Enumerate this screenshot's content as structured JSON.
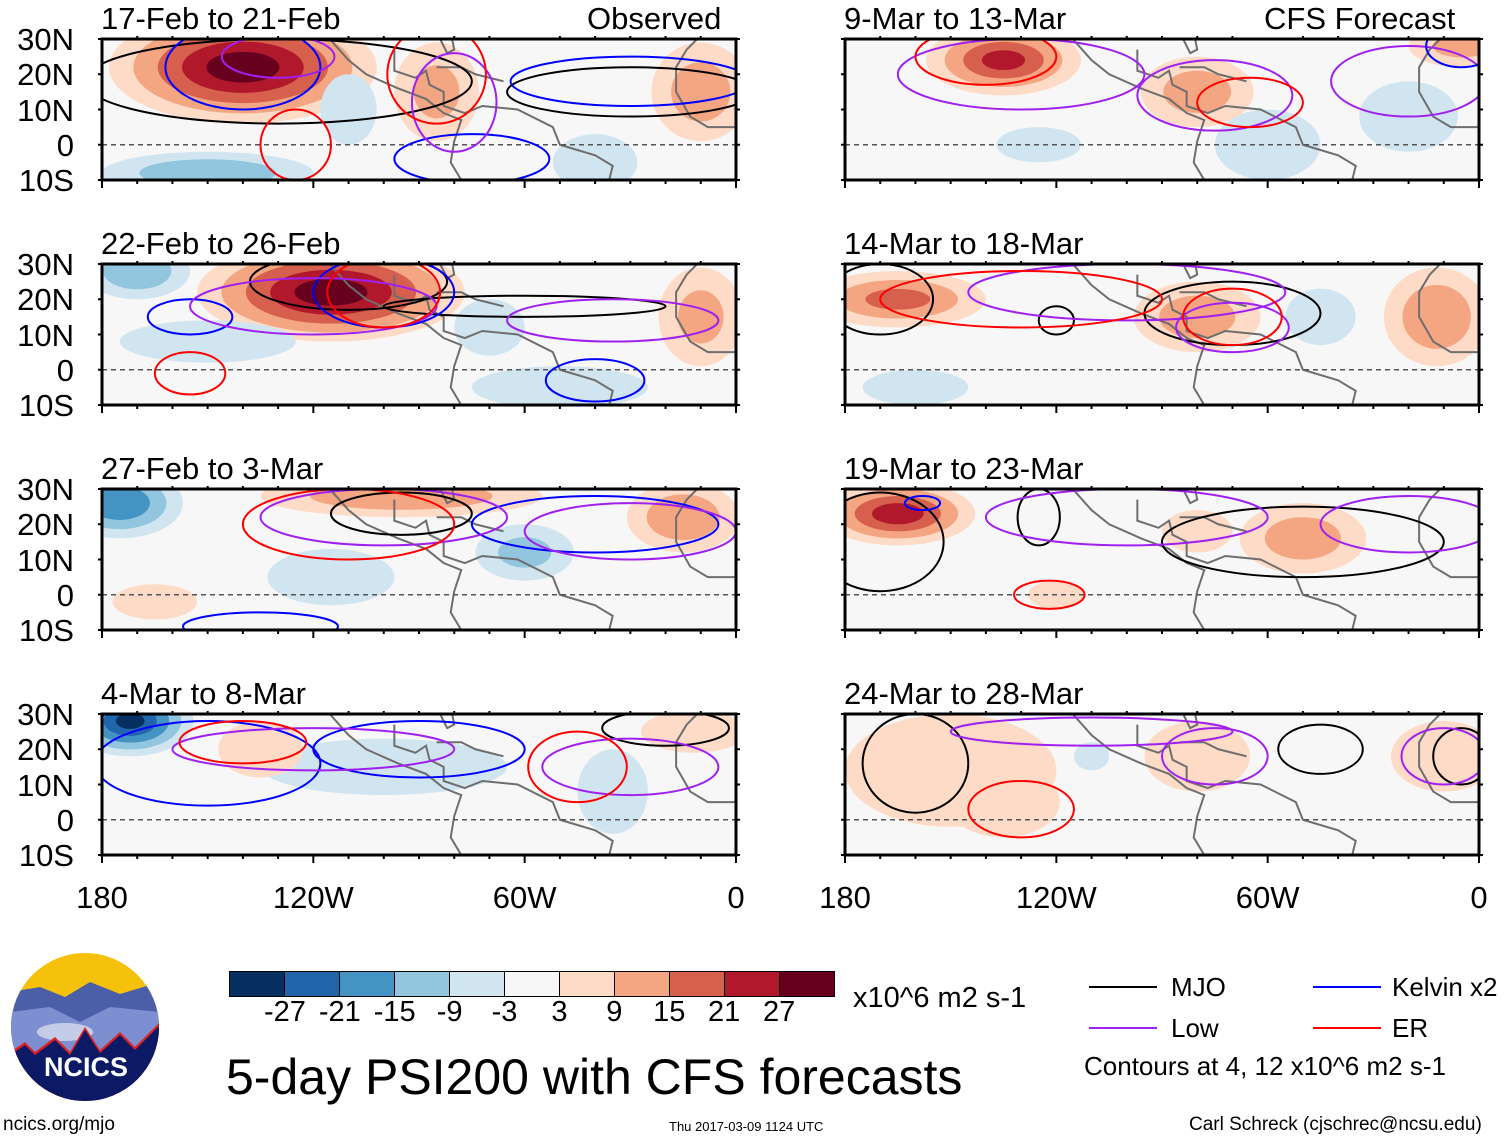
{
  "figure": {
    "title": "5-day PSI200 with CFS forecasts",
    "footer_left": "ncics.org/mjo",
    "footer_center": "Thu 2017-03-09 1124 UTC",
    "footer_right": "Carl Schreck (cjschrec@ncsu.edu)",
    "logo_text": "NCICS"
  },
  "columns": [
    {
      "label": "Observed"
    },
    {
      "label": "CFS Forecast"
    }
  ],
  "lat_labels": [
    "30N",
    "20N",
    "10N",
    "0",
    "10S"
  ],
  "lon_labels": [
    "180",
    "120W",
    "60W",
    "0"
  ],
  "colorbar": {
    "units": "x10^6 m2 s-1",
    "colors": [
      "#053061",
      "#2166ac",
      "#4393c3",
      "#92c5de",
      "#d1e5f0",
      "#f7f7f7",
      "#fddbc7",
      "#f4a582",
      "#d6604d",
      "#b2182b",
      "#67001f"
    ],
    "ticks": [
      "-27",
      "-21",
      "-15",
      "-9",
      "-3",
      "3",
      "9",
      "15",
      "21",
      "27"
    ]
  },
  "legend": {
    "items": [
      {
        "label": "MJO",
        "color": "#000000"
      },
      {
        "label": "Kelvin x2",
        "color": "#0000ff"
      },
      {
        "label": "Low",
        "color": "#a020f0"
      },
      {
        "label": "ER",
        "color": "#ff0000"
      }
    ],
    "contours_note": "Contours at 4, 12 x10^6 m2 s-1"
  },
  "chart_data": {
    "type": "map",
    "domain": {
      "lonW": [
        180,
        0
      ],
      "lat": [
        -10,
        30
      ]
    },
    "coastline": [
      [
        [
          118,
          33
        ],
        [
          110,
          24
        ],
        [
          105,
          20
        ],
        [
          96,
          16
        ],
        [
          88,
          13
        ],
        [
          83,
          9
        ],
        [
          78,
          7
        ],
        [
          80,
          1
        ],
        [
          81,
          -5
        ],
        [
          78,
          -10
        ]
      ],
      [
        [
          97,
          27
        ],
        [
          97,
          21
        ],
        [
          91,
          19
        ],
        [
          88,
          21
        ],
        [
          87,
          17
        ],
        [
          83,
          15
        ],
        [
          83,
          11
        ],
        [
          77,
          9
        ],
        [
          72,
          11
        ],
        [
          62,
          10
        ],
        [
          52,
          5
        ],
        [
          50,
          0
        ],
        [
          40,
          -3
        ],
        [
          35,
          -6
        ],
        [
          36,
          -10
        ]
      ],
      [
        [
          90,
          30
        ],
        [
          84,
          30
        ],
        [
          82,
          26
        ],
        [
          80,
          27
        ],
        [
          81,
          32
        ]
      ],
      [
        [
          85,
          22
        ],
        [
          78,
          22
        ],
        [
          74,
          20
        ],
        [
          70,
          19
        ],
        [
          66,
          18
        ]
      ],
      [
        [
          10,
          31
        ],
        [
          14,
          27
        ],
        [
          17,
          22
        ],
        [
          17,
          15
        ],
        [
          13,
          8
        ],
        [
          8,
          5
        ],
        [
          0,
          5
        ]
      ]
    ],
    "panels": [
      {
        "title": "17-Feb to 21-Feb",
        "column": 0,
        "anomalies": [
          {
            "lonW": 140,
            "lat": 22,
            "rlon": 38,
            "rlat": 16,
            "value": 30
          },
          {
            "lonW": 85,
            "lat": 15,
            "rlon": 12,
            "rlat": 14,
            "value": 10
          },
          {
            "lonW": 10,
            "lat": 15,
            "rlon": 14,
            "rlat": 14,
            "value": 12
          },
          {
            "lonW": 150,
            "lat": -8,
            "rlon": 30,
            "rlat": 6,
            "value": -14
          },
          {
            "lonW": 110,
            "lat": 10,
            "rlon": 8,
            "rlat": 10,
            "value": -8
          },
          {
            "lonW": 40,
            "lat": -5,
            "rlon": 12,
            "rlat": 8,
            "value": -8
          }
        ],
        "contours": [
          {
            "type": "MJO",
            "lonW": 130,
            "lat": 18,
            "rlon": 55,
            "rlat": 12
          },
          {
            "type": "MJO",
            "lonW": 30,
            "lat": 15,
            "rlon": 35,
            "rlat": 7
          },
          {
            "type": "Kelvin x2",
            "lonW": 140,
            "lat": 22,
            "rlon": 22,
            "rlat": 12
          },
          {
            "type": "Kelvin x2",
            "lonW": 30,
            "lat": 18,
            "rlon": 34,
            "rlat": 7
          },
          {
            "type": "Kelvin x2",
            "lonW": 75,
            "lat": -4,
            "rlon": 22,
            "rlat": 7
          },
          {
            "type": "Low",
            "lonW": 130,
            "lat": 25,
            "rlon": 16,
            "rlat": 6
          },
          {
            "type": "Low",
            "lonW": 80,
            "lat": 12,
            "rlon": 12,
            "rlat": 14
          },
          {
            "type": "ER",
            "lonW": 85,
            "lat": 20,
            "rlon": 14,
            "rlat": 14
          },
          {
            "type": "ER",
            "lonW": 125,
            "lat": 0,
            "rlon": 10,
            "rlat": 10
          }
        ]
      },
      {
        "title": "22-Feb to 26-Feb",
        "column": 0,
        "anomalies": [
          {
            "lonW": 115,
            "lat": 22,
            "rlon": 38,
            "rlat": 14,
            "value": 30
          },
          {
            "lonW": 10,
            "lat": 15,
            "rlon": 12,
            "rlat": 14,
            "value": 10
          },
          {
            "lonW": 170,
            "lat": 28,
            "rlon": 15,
            "rlat": 8,
            "value": -14
          },
          {
            "lonW": 70,
            "lat": 12,
            "rlon": 10,
            "rlat": 8,
            "value": -8
          },
          {
            "lonW": 50,
            "lat": -5,
            "rlon": 25,
            "rlat": 6,
            "value": -6
          },
          {
            "lonW": 150,
            "lat": 8,
            "rlon": 25,
            "rlat": 6,
            "value": -5
          }
        ],
        "contours": [
          {
            "type": "MJO",
            "lonW": 110,
            "lat": 25,
            "rlon": 28,
            "rlat": 8
          },
          {
            "type": "MJO",
            "lonW": 60,
            "lat": 18,
            "rlon": 40,
            "rlat": 3
          },
          {
            "type": "Kelvin x2",
            "lonW": 100,
            "lat": 22,
            "rlon": 20,
            "rlat": 10
          },
          {
            "type": "Kelvin x2",
            "lonW": 155,
            "lat": 15,
            "rlon": 12,
            "rlat": 5
          },
          {
            "type": "Kelvin x2",
            "lonW": 40,
            "lat": -3,
            "rlon": 14,
            "rlat": 6
          },
          {
            "type": "Low",
            "lonW": 120,
            "lat": 18,
            "rlon": 35,
            "rlat": 8
          },
          {
            "type": "Low",
            "lonW": 35,
            "lat": 14,
            "rlon": 30,
            "rlat": 6
          },
          {
            "type": "ER",
            "lonW": 100,
            "lat": 22,
            "rlon": 16,
            "rlat": 10
          },
          {
            "type": "ER",
            "lonW": 155,
            "lat": -1,
            "rlon": 10,
            "rlat": 6
          }
        ]
      },
      {
        "title": "27-Feb to 3-Mar",
        "column": 0,
        "anomalies": [
          {
            "lonW": 175,
            "lat": 26,
            "rlon": 18,
            "rlat": 10,
            "value": -20
          },
          {
            "lonW": 95,
            "lat": 28,
            "rlon": 40,
            "rlat": 6,
            "value": 14
          },
          {
            "lonW": 15,
            "lat": 22,
            "rlon": 16,
            "rlat": 10,
            "value": 14
          },
          {
            "lonW": 115,
            "lat": 5,
            "rlon": 18,
            "rlat": 8,
            "value": -8
          },
          {
            "lonW": 60,
            "lat": 12,
            "rlon": 14,
            "rlat": 8,
            "value": -10
          },
          {
            "lonW": 165,
            "lat": -2,
            "rlon": 12,
            "rlat": 5,
            "value": 5
          }
        ],
        "contours": [
          {
            "type": "MJO",
            "lonW": 95,
            "lat": 23,
            "rlon": 20,
            "rlat": 6
          },
          {
            "type": "Kelvin x2",
            "lonW": 40,
            "lat": 20,
            "rlon": 35,
            "rlat": 8
          },
          {
            "type": "Kelvin x2",
            "lonW": 135,
            "lat": -9,
            "rlon": 22,
            "rlat": 4
          },
          {
            "type": "Low",
            "lonW": 100,
            "lat": 22,
            "rlon": 35,
            "rlat": 8
          },
          {
            "type": "Low",
            "lonW": 30,
            "lat": 18,
            "rlon": 30,
            "rlat": 8
          },
          {
            "type": "ER",
            "lonW": 110,
            "lat": 20,
            "rlon": 30,
            "rlat": 10
          }
        ]
      },
      {
        "title": "4-Mar to 8-Mar",
        "column": 0,
        "anomalies": [
          {
            "lonW": 172,
            "lat": 28,
            "rlon": 18,
            "rlat": 10,
            "value": -28
          },
          {
            "lonW": 100,
            "lat": 15,
            "rlon": 35,
            "rlat": 8,
            "value": -8
          },
          {
            "lonW": 35,
            "lat": 8,
            "rlon": 10,
            "rlat": 12,
            "value": -8
          },
          {
            "lonW": 135,
            "lat": 20,
            "rlon": 12,
            "rlat": 8,
            "value": 5
          },
          {
            "lonW": 12,
            "lat": 25,
            "rlon": 15,
            "rlat": 6,
            "value": 8
          }
        ],
        "contours": [
          {
            "type": "MJO",
            "lonW": 20,
            "lat": 26,
            "rlon": 18,
            "rlat": 5
          },
          {
            "type": "Kelvin x2",
            "lonW": 150,
            "lat": 16,
            "rlon": 32,
            "rlat": 12
          },
          {
            "type": "Kelvin x2",
            "lonW": 90,
            "lat": 20,
            "rlon": 30,
            "rlat": 8
          },
          {
            "type": "Low",
            "lonW": 120,
            "lat": 20,
            "rlon": 40,
            "rlat": 6
          },
          {
            "type": "Low",
            "lonW": 30,
            "lat": 15,
            "rlon": 25,
            "rlat": 8
          },
          {
            "type": "ER",
            "lonW": 140,
            "lat": 22,
            "rlon": 18,
            "rlat": 6
          },
          {
            "type": "ER",
            "lonW": 45,
            "lat": 15,
            "rlon": 14,
            "rlat": 10
          }
        ]
      },
      {
        "title": "9-Mar to 13-Mar",
        "column": 1,
        "anomalies": [
          {
            "lonW": 135,
            "lat": 24,
            "rlon": 22,
            "rlat": 10,
            "value": 22
          },
          {
            "lonW": 80,
            "lat": 15,
            "rlon": 16,
            "rlat": 10,
            "value": 12
          },
          {
            "lonW": 5,
            "lat": 28,
            "rlon": 15,
            "rlat": 6,
            "value": 10
          },
          {
            "lonW": 125,
            "lat": 0,
            "rlon": 12,
            "rlat": 5,
            "value": -8
          },
          {
            "lonW": 20,
            "lat": 8,
            "rlon": 14,
            "rlat": 10,
            "value": -8
          },
          {
            "lonW": 60,
            "lat": 0,
            "rlon": 15,
            "rlat": 10,
            "value": -4
          }
        ],
        "contours": [
          {
            "type": "Low",
            "lonW": 130,
            "lat": 20,
            "rlon": 35,
            "rlat": 10
          },
          {
            "type": "Low",
            "lonW": 75,
            "lat": 14,
            "rlon": 22,
            "rlat": 10
          },
          {
            "type": "Low",
            "lonW": 20,
            "lat": 18,
            "rlon": 22,
            "rlat": 10
          },
          {
            "type": "ER",
            "lonW": 140,
            "lat": 25,
            "rlon": 20,
            "rlat": 8
          },
          {
            "type": "ER",
            "lonW": 65,
            "lat": 12,
            "rlon": 15,
            "rlat": 7
          },
          {
            "type": "Kelvin x2",
            "lonW": 5,
            "lat": 28,
            "rlon": 10,
            "rlat": 6
          }
        ]
      },
      {
        "title": "14-Mar to 18-Mar",
        "column": 1,
        "anomalies": [
          {
            "lonW": 165,
            "lat": 20,
            "rlon": 25,
            "rlat": 8,
            "value": 16
          },
          {
            "lonW": 80,
            "lat": 15,
            "rlon": 18,
            "rlat": 10,
            "value": 12
          },
          {
            "lonW": 12,
            "lat": 15,
            "rlon": 15,
            "rlat": 14,
            "value": 14
          },
          {
            "lonW": 45,
            "lat": 15,
            "rlon": 10,
            "rlat": 8,
            "value": -8
          },
          {
            "lonW": 160,
            "lat": -5,
            "rlon": 15,
            "rlat": 5,
            "value": -6
          }
        ],
        "contours": [
          {
            "type": "MJO",
            "lonW": 170,
            "lat": 20,
            "rlon": 15,
            "rlat": 10
          },
          {
            "type": "MJO",
            "lonW": 70,
            "lat": 16,
            "rlon": 25,
            "rlat": 9
          },
          {
            "type": "MJO",
            "lonW": 120,
            "lat": 14,
            "rlon": 5,
            "rlat": 4
          },
          {
            "type": "Low",
            "lonW": 100,
            "lat": 22,
            "rlon": 45,
            "rlat": 8
          },
          {
            "type": "Low",
            "lonW": 70,
            "lat": 12,
            "rlon": 16,
            "rlat": 7
          },
          {
            "type": "ER",
            "lonW": 130,
            "lat": 20,
            "rlon": 40,
            "rlat": 8
          },
          {
            "type": "ER",
            "lonW": 70,
            "lat": 15,
            "rlon": 14,
            "rlat": 8
          }
        ]
      },
      {
        "title": "19-Mar to 23-Mar",
        "column": 1,
        "anomalies": [
          {
            "lonW": 165,
            "lat": 23,
            "rlon": 22,
            "rlat": 9,
            "value": 24
          },
          {
            "lonW": 50,
            "lat": 16,
            "rlon": 18,
            "rlat": 10,
            "value": 12
          },
          {
            "lonW": 80,
            "lat": 18,
            "rlon": 10,
            "rlat": 6,
            "value": 6
          },
          {
            "lonW": 120,
            "lat": 0,
            "rlon": 8,
            "rlat": 4,
            "value": 5
          }
        ],
        "contours": [
          {
            "type": "MJO",
            "lonW": 170,
            "lat": 15,
            "rlon": 18,
            "rlat": 14
          },
          {
            "type": "MJO",
            "lonW": 50,
            "lat": 15,
            "rlon": 40,
            "rlat": 10
          },
          {
            "type": "MJO",
            "lonW": 125,
            "lat": 22,
            "rlon": 6,
            "rlat": 8
          },
          {
            "type": "Kelvin x2",
            "lonW": 158,
            "lat": 26,
            "rlon": 5,
            "rlat": 2
          },
          {
            "type": "Low",
            "lonW": 100,
            "lat": 22,
            "rlon": 40,
            "rlat": 8
          },
          {
            "type": "Low",
            "lonW": 20,
            "lat": 20,
            "rlon": 25,
            "rlat": 8
          },
          {
            "type": "ER",
            "lonW": 122,
            "lat": 0,
            "rlon": 10,
            "rlat": 4
          }
        ]
      },
      {
        "title": "24-Mar to 28-Mar",
        "column": 1,
        "anomalies": [
          {
            "lonW": 150,
            "lat": 14,
            "rlon": 30,
            "rlat": 16,
            "value": 8
          },
          {
            "lonW": 80,
            "lat": 18,
            "rlon": 15,
            "rlat": 10,
            "value": 8
          },
          {
            "lonW": 10,
            "lat": 18,
            "rlon": 15,
            "rlat": 10,
            "value": 8
          },
          {
            "lonW": 135,
            "lat": 5,
            "rlon": 16,
            "rlat": 10,
            "value": 6
          },
          {
            "lonW": 110,
            "lat": 18,
            "rlon": 5,
            "rlat": 4,
            "value": -5
          }
        ],
        "contours": [
          {
            "type": "MJO",
            "lonW": 160,
            "lat": 16,
            "rlon": 15,
            "rlat": 14
          },
          {
            "type": "MJO",
            "lonW": 45,
            "lat": 20,
            "rlon": 12,
            "rlat": 7
          },
          {
            "type": "MJO",
            "lonW": 5,
            "lat": 18,
            "rlon": 8,
            "rlat": 8
          },
          {
            "type": "Low",
            "lonW": 110,
            "lat": 25,
            "rlon": 40,
            "rlat": 4
          },
          {
            "type": "Low",
            "lonW": 75,
            "lat": 18,
            "rlon": 15,
            "rlat": 8
          },
          {
            "type": "Low",
            "lonW": 10,
            "lat": 18,
            "rlon": 12,
            "rlat": 8
          },
          {
            "type": "ER",
            "lonW": 130,
            "lat": 3,
            "rlon": 15,
            "rlat": 8
          }
        ]
      }
    ]
  }
}
